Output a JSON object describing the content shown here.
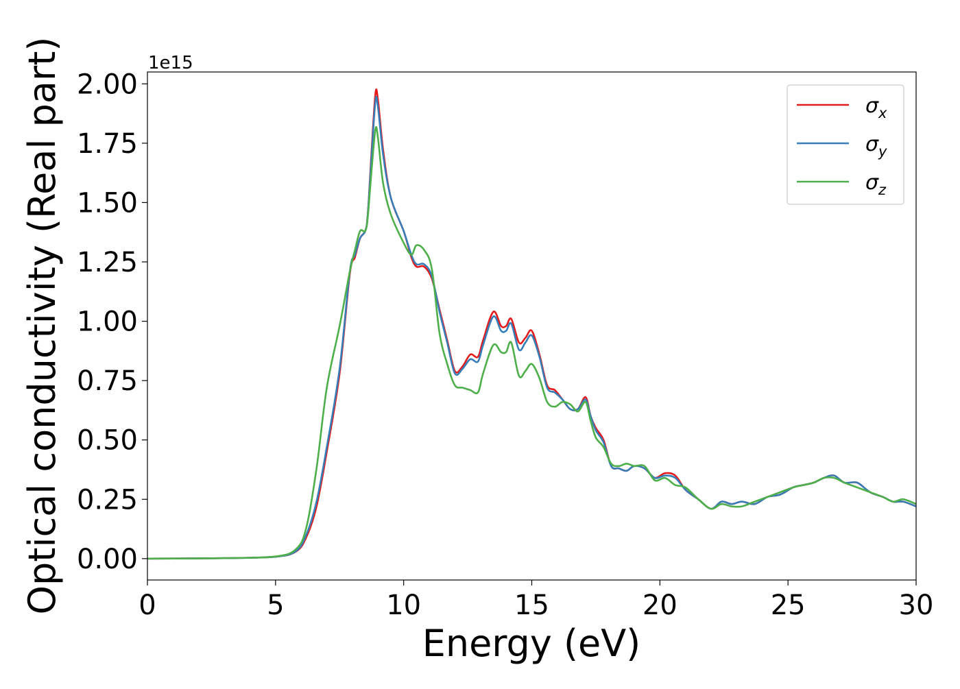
{
  "chart_data": {
    "type": "line",
    "xlabel": "Energy (eV)",
    "ylabel": "Optical conductivity (Real part)",
    "y_offset_label": "1e15",
    "xlim": [
      0,
      30
    ],
    "ylim": [
      -0.09,
      2.05
    ],
    "x_ticks": [
      0,
      5,
      10,
      15,
      20,
      25,
      30
    ],
    "x_tick_labels": [
      "0",
      "5",
      "10",
      "15",
      "20",
      "25",
      "30"
    ],
    "y_ticks": [
      0,
      0.25,
      0.5,
      0.75,
      1.0,
      1.25,
      1.5,
      1.75,
      2.0
    ],
    "y_tick_labels": [
      "0.00",
      "0.25",
      "0.50",
      "0.75",
      "1.00",
      "1.25",
      "1.50",
      "1.75",
      "2.00"
    ],
    "grid": false,
    "legend_position": "top-right",
    "series": [
      {
        "name": "σx",
        "symbol": "σ",
        "subscript": "x",
        "color": "#e41a1c",
        "x": [
          0,
          3,
          5,
          5.8,
          6.2,
          6.6,
          7.0,
          7.5,
          7.9,
          8.1,
          8.3,
          8.5,
          8.6,
          8.75,
          8.9,
          9.0,
          9.2,
          9.5,
          10.0,
          10.3,
          10.5,
          10.8,
          11.1,
          11.4,
          11.7,
          12.0,
          12.3,
          12.6,
          12.9,
          13.1,
          13.5,
          13.8,
          14.0,
          14.2,
          14.5,
          14.75,
          15.0,
          15.3,
          15.6,
          15.9,
          16.2,
          16.5,
          16.8,
          17.1,
          17.3,
          17.5,
          17.8,
          18.1,
          18.4,
          18.7,
          19.0,
          19.4,
          19.8,
          20.2,
          20.6,
          21.0,
          21.5,
          22.0,
          22.4,
          22.8,
          23.2,
          23.7,
          24.2,
          24.7,
          25.2,
          25.6,
          26.0,
          26.4,
          26.8,
          27.2,
          27.7,
          28.2,
          28.7,
          29.1,
          29.5,
          30.0
        ],
        "y": [
          0,
          0.002,
          0.008,
          0.03,
          0.09,
          0.22,
          0.45,
          0.78,
          1.2,
          1.27,
          1.35,
          1.38,
          1.45,
          1.72,
          1.96,
          1.93,
          1.72,
          1.52,
          1.38,
          1.27,
          1.23,
          1.23,
          1.18,
          1.05,
          0.92,
          0.79,
          0.81,
          0.86,
          0.85,
          0.92,
          1.04,
          0.98,
          0.98,
          1.01,
          0.91,
          0.93,
          0.96,
          0.86,
          0.73,
          0.71,
          0.67,
          0.63,
          0.63,
          0.68,
          0.6,
          0.55,
          0.5,
          0.39,
          0.38,
          0.37,
          0.39,
          0.38,
          0.34,
          0.36,
          0.35,
          0.29,
          0.25,
          0.21,
          0.24,
          0.23,
          0.24,
          0.23,
          0.26,
          0.27,
          0.3,
          0.31,
          0.32,
          0.34,
          0.35,
          0.32,
          0.32,
          0.28,
          0.26,
          0.24,
          0.24,
          0.22
        ]
      },
      {
        "name": "σy",
        "symbol": "σ",
        "subscript": "y",
        "color": "#377eb8",
        "x": [
          0,
          3,
          5,
          5.8,
          6.2,
          6.6,
          7.0,
          7.5,
          7.9,
          8.1,
          8.3,
          8.5,
          8.6,
          8.75,
          8.9,
          9.0,
          9.2,
          9.5,
          10.0,
          10.3,
          10.5,
          10.8,
          11.1,
          11.4,
          11.7,
          12.0,
          12.3,
          12.6,
          12.9,
          13.1,
          13.5,
          13.8,
          14.0,
          14.2,
          14.5,
          14.75,
          15.0,
          15.3,
          15.6,
          15.9,
          16.2,
          16.5,
          16.8,
          17.1,
          17.3,
          17.5,
          17.8,
          18.1,
          18.4,
          18.7,
          19.0,
          19.4,
          19.8,
          20.2,
          20.6,
          21.0,
          21.5,
          22.0,
          22.4,
          22.8,
          23.2,
          23.7,
          24.2,
          24.7,
          25.2,
          25.6,
          26.0,
          26.4,
          26.8,
          27.2,
          27.7,
          28.2,
          28.7,
          29.1,
          29.5,
          30.0
        ],
        "y": [
          0,
          0.002,
          0.008,
          0.032,
          0.1,
          0.24,
          0.47,
          0.8,
          1.21,
          1.28,
          1.35,
          1.38,
          1.45,
          1.7,
          1.93,
          1.9,
          1.7,
          1.52,
          1.38,
          1.28,
          1.24,
          1.24,
          1.19,
          1.04,
          0.91,
          0.78,
          0.8,
          0.84,
          0.83,
          0.9,
          1.02,
          0.96,
          0.96,
          0.99,
          0.88,
          0.91,
          0.94,
          0.85,
          0.72,
          0.7,
          0.67,
          0.63,
          0.63,
          0.67,
          0.6,
          0.54,
          0.49,
          0.39,
          0.38,
          0.37,
          0.39,
          0.38,
          0.34,
          0.35,
          0.34,
          0.29,
          0.25,
          0.21,
          0.24,
          0.23,
          0.24,
          0.23,
          0.26,
          0.27,
          0.3,
          0.31,
          0.32,
          0.34,
          0.35,
          0.32,
          0.32,
          0.28,
          0.26,
          0.24,
          0.24,
          0.22
        ]
      },
      {
        "name": "σz",
        "symbol": "σ",
        "subscript": "z",
        "color": "#4daf4a",
        "x": [
          0,
          3,
          5,
          5.8,
          6.2,
          6.6,
          7.0,
          7.5,
          7.9,
          8.1,
          8.3,
          8.5,
          8.6,
          8.75,
          8.9,
          9.0,
          9.2,
          9.5,
          10.0,
          10.3,
          10.5,
          10.8,
          11.1,
          11.4,
          11.7,
          12.0,
          12.3,
          12.6,
          12.9,
          13.1,
          13.5,
          13.8,
          14.0,
          14.2,
          14.5,
          14.75,
          15.0,
          15.3,
          15.6,
          15.9,
          16.2,
          16.5,
          16.8,
          17.1,
          17.3,
          17.5,
          17.8,
          18.1,
          18.4,
          18.7,
          19.0,
          19.4,
          19.8,
          20.2,
          20.6,
          21.0,
          21.5,
          22.0,
          22.4,
          22.8,
          23.2,
          23.7,
          24.2,
          24.7,
          25.2,
          25.6,
          26.0,
          26.4,
          26.8,
          27.2,
          27.7,
          28.2,
          28.7,
          29.1,
          29.5,
          30.0
        ],
        "y": [
          0,
          0.002,
          0.009,
          0.04,
          0.13,
          0.38,
          0.72,
          0.98,
          1.21,
          1.3,
          1.38,
          1.38,
          1.44,
          1.64,
          1.81,
          1.77,
          1.58,
          1.45,
          1.33,
          1.28,
          1.32,
          1.3,
          1.22,
          0.95,
          0.82,
          0.73,
          0.72,
          0.71,
          0.7,
          0.78,
          0.9,
          0.87,
          0.87,
          0.91,
          0.77,
          0.79,
          0.82,
          0.76,
          0.66,
          0.64,
          0.66,
          0.65,
          0.62,
          0.66,
          0.58,
          0.51,
          0.47,
          0.4,
          0.39,
          0.4,
          0.39,
          0.39,
          0.33,
          0.34,
          0.31,
          0.3,
          0.25,
          0.21,
          0.23,
          0.22,
          0.22,
          0.24,
          0.26,
          0.28,
          0.3,
          0.31,
          0.32,
          0.34,
          0.34,
          0.32,
          0.3,
          0.28,
          0.26,
          0.24,
          0.25,
          0.23
        ]
      }
    ]
  }
}
